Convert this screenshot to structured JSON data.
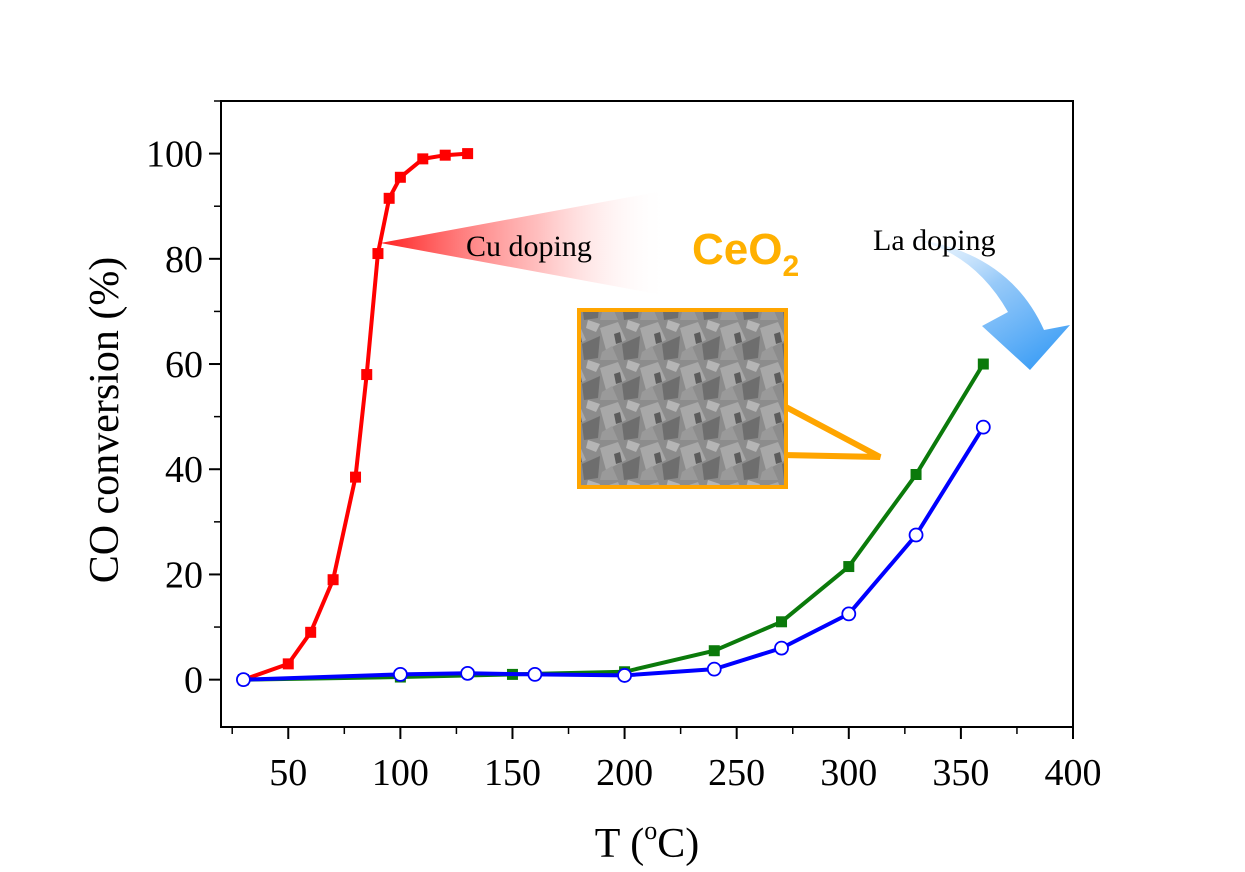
{
  "chart_data": {
    "type": "line",
    "title": "",
    "xlabel": "T (",
    "xlabel_sup": "o",
    "xlabel_unit": "C)",
    "ylabel": "CO conversion (%)",
    "xlim": [
      20,
      400
    ],
    "ylim": [
      -9,
      110
    ],
    "xticks": [
      50,
      100,
      150,
      200,
      250,
      300,
      350,
      400
    ],
    "yticks": [
      0,
      20,
      40,
      60,
      80,
      100
    ],
    "grid": false,
    "series": [
      {
        "color": "#ff0000",
        "marker": "filled-square",
        "x": [
          30,
          50,
          60,
          70,
          80,
          85,
          90,
          95,
          100,
          110,
          120,
          130
        ],
        "y": [
          0,
          3,
          9,
          19,
          38.5,
          58,
          81,
          91.5,
          95.5,
          99,
          99.7,
          100
        ]
      },
      {
        "color": "#0b7a0b",
        "marker": "filled-square",
        "x": [
          30,
          100,
          150,
          200,
          240,
          270,
          300,
          330,
          360
        ],
        "y": [
          0,
          0.5,
          1,
          1.5,
          5.5,
          11,
          21.5,
          39,
          60
        ]
      },
      {
        "color": "#0000ff",
        "marker": "open-circle",
        "x": [
          30,
          100,
          130,
          160,
          200,
          240,
          270,
          300,
          330,
          360
        ],
        "y": [
          0,
          1,
          1.2,
          1,
          0.8,
          2,
          6,
          12.5,
          27.5,
          48
        ]
      }
    ],
    "annotations": {
      "cu_doping": "Cu doping",
      "la_doping": "La doping",
      "ceo2_main": "CeO",
      "ceo2_sub": "2",
      "ceo2_color": "#ffb000"
    }
  }
}
